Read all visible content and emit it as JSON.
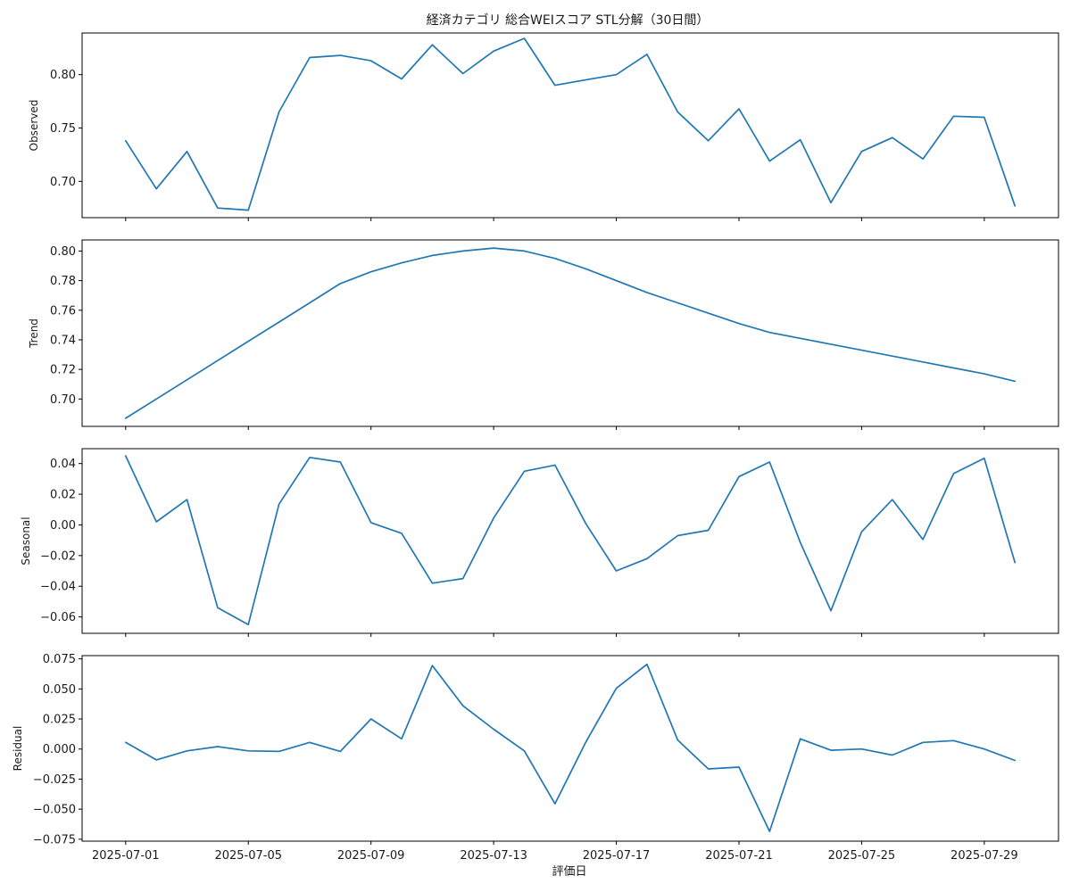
{
  "chart_data": {
    "type": "line",
    "title": "経済カテゴリ 総合WEIスコア STL分解（30日間）",
    "xlabel": "評価日",
    "line_color": "#1f77b4",
    "x": [
      "2025-07-01",
      "2025-07-02",
      "2025-07-03",
      "2025-07-04",
      "2025-07-05",
      "2025-07-06",
      "2025-07-07",
      "2025-07-08",
      "2025-07-09",
      "2025-07-10",
      "2025-07-11",
      "2025-07-12",
      "2025-07-13",
      "2025-07-14",
      "2025-07-15",
      "2025-07-16",
      "2025-07-17",
      "2025-07-18",
      "2025-07-19",
      "2025-07-20",
      "2025-07-21",
      "2025-07-22",
      "2025-07-23",
      "2025-07-24",
      "2025-07-25",
      "2025-07-26",
      "2025-07-27",
      "2025-07-28",
      "2025-07-29",
      "2025-07-30"
    ],
    "x_ticks": [
      "2025-07-01",
      "2025-07-05",
      "2025-07-09",
      "2025-07-13",
      "2025-07-17",
      "2025-07-21",
      "2025-07-25",
      "2025-07-29"
    ],
    "panels": [
      {
        "ylabel": "Observed",
        "ylim": [
          0.666,
          0.839
        ],
        "y_ticks": [
          "0.70",
          "0.75",
          "0.80"
        ],
        "values": [
          0.738,
          0.693,
          0.728,
          0.675,
          0.673,
          0.765,
          0.816,
          0.818,
          0.813,
          0.796,
          0.828,
          0.801,
          0.822,
          0.834,
          0.79,
          0.795,
          0.8,
          0.819,
          0.765,
          0.738,
          0.768,
          0.719,
          0.739,
          0.68,
          0.728,
          0.741,
          0.721,
          0.761,
          0.76,
          0.677
        ]
      },
      {
        "ylabel": "Trend",
        "ylim": [
          0.6815,
          0.8075
        ],
        "y_ticks": [
          "0.70",
          "0.72",
          "0.74",
          "0.76",
          "0.78",
          "0.80"
        ],
        "values": [
          0.687,
          0.7,
          0.713,
          0.726,
          0.739,
          0.752,
          0.765,
          0.778,
          0.786,
          0.792,
          0.797,
          0.8,
          0.802,
          0.8,
          0.795,
          0.788,
          0.78,
          0.772,
          0.765,
          0.758,
          0.751,
          0.745,
          0.741,
          0.737,
          0.733,
          0.729,
          0.725,
          0.721,
          0.717,
          0.712
        ]
      },
      {
        "ylabel": "Seasonal",
        "ylim": [
          -0.0707,
          0.0497
        ],
        "y_ticks": [
          "0.04",
          "0.02",
          "0.00",
          "−0.02",
          "−0.04",
          "−0.06"
        ],
        "values": [
          0.045,
          0.002,
          0.0165,
          -0.054,
          -0.065,
          0.0135,
          0.044,
          0.041,
          0.0015,
          -0.0055,
          -0.038,
          -0.035,
          0.0045,
          0.035,
          0.039,
          0.001,
          -0.03,
          -0.022,
          -0.007,
          -0.0035,
          0.0315,
          0.041,
          -0.0115,
          -0.056,
          -0.0045,
          0.0165,
          -0.0095,
          0.0335,
          0.0435,
          -0.0245
        ]
      },
      {
        "ylabel": "Residual",
        "ylim": [
          -0.0766,
          0.0777
        ],
        "y_ticks": [
          "0.075",
          "0.050",
          "0.025",
          "0.000",
          "−0.025",
          "−0.050",
          "−0.075"
        ],
        "values": [
          0.0055,
          -0.009,
          -0.0015,
          0.002,
          -0.0015,
          -0.002,
          0.0055,
          -0.002,
          0.025,
          0.0085,
          0.0695,
          0.036,
          0.0165,
          -0.0015,
          -0.0455,
          0.0055,
          0.0505,
          0.0705,
          0.0075,
          -0.0165,
          -0.015,
          -0.0685,
          0.0085,
          -0.001,
          0.0,
          -0.005,
          0.0055,
          0.007,
          0.0,
          -0.0095
        ]
      }
    ]
  }
}
